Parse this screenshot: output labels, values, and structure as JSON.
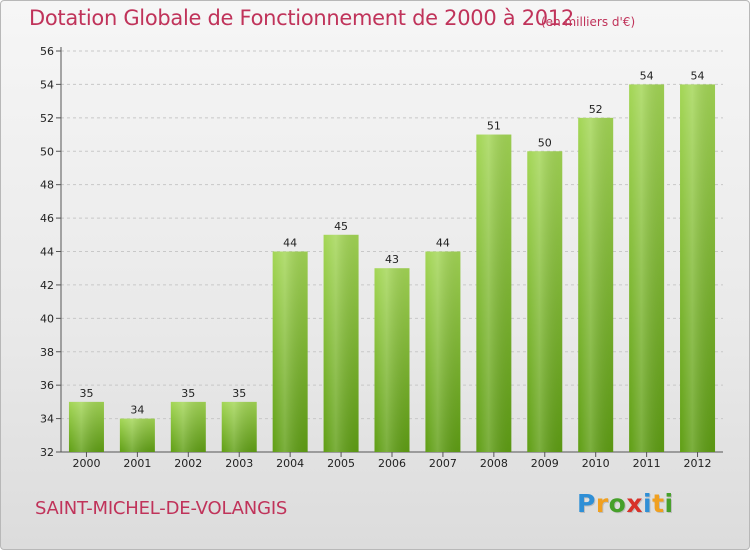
{
  "chart_data": {
    "type": "bar",
    "title": "Dotation Globale de Fonctionnement de 2000 à 2012",
    "subtitle": "(en milliers d'€)",
    "categories": [
      "2000",
      "2001",
      "2002",
      "2003",
      "2004",
      "2005",
      "2006",
      "2007",
      "2008",
      "2009",
      "2010",
      "2011",
      "2012"
    ],
    "values": [
      35,
      34,
      35,
      35,
      44,
      45,
      43,
      44,
      51,
      50,
      52,
      54,
      54
    ],
    "ylim": [
      32,
      56
    ],
    "yticks": [
      32,
      34,
      36,
      38,
      40,
      42,
      44,
      46,
      48,
      50,
      52,
      54,
      56
    ],
    "grid": true,
    "colors": {
      "bar_light": "#a3d655",
      "bar_dark": "#5f9e14",
      "grid": "#c8c8c8"
    }
  },
  "footer": {
    "commune": "SAINT-MICHEL-DE-VOLANGIS",
    "logo_letters": [
      "P",
      "r",
      "o",
      "x",
      "i",
      "t",
      "i"
    ],
    "logo_colors": [
      "#2f8fd6",
      "#f0a020",
      "#46a02a",
      "#d8322a",
      "#2f8fd6",
      "#f0a020",
      "#46a02a"
    ]
  }
}
